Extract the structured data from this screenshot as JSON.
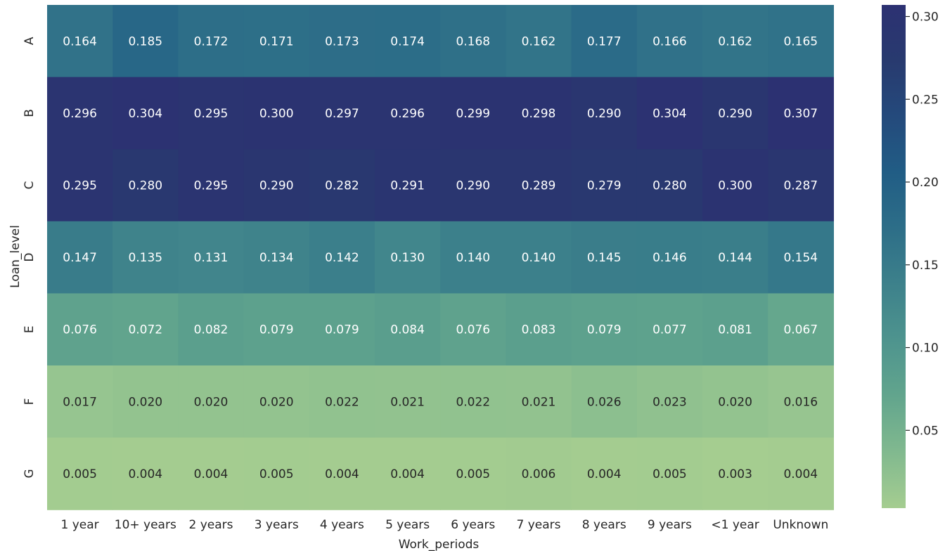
{
  "chart_data": {
    "type": "heatmap",
    "title": "",
    "xlabel": "Work_periods",
    "ylabel": "Loan_level",
    "x_categories": [
      "1 year",
      "10+ years",
      "2 years",
      "3 years",
      "4 years",
      "5 years",
      "6 years",
      "7 years",
      "8 years",
      "9 years",
      "<1 year",
      "Unknown"
    ],
    "y_categories": [
      "A",
      "B",
      "C",
      "D",
      "E",
      "F",
      "G"
    ],
    "values": [
      [
        0.164,
        0.185,
        0.172,
        0.171,
        0.173,
        0.174,
        0.168,
        0.162,
        0.177,
        0.166,
        0.162,
        0.165
      ],
      [
        0.296,
        0.304,
        0.295,
        0.3,
        0.297,
        0.296,
        0.299,
        0.298,
        0.29,
        0.304,
        0.29,
        0.307
      ],
      [
        0.295,
        0.28,
        0.295,
        0.29,
        0.282,
        0.291,
        0.29,
        0.289,
        0.279,
        0.28,
        0.3,
        0.287
      ],
      [
        0.147,
        0.135,
        0.131,
        0.134,
        0.142,
        0.13,
        0.14,
        0.14,
        0.145,
        0.146,
        0.144,
        0.154
      ],
      [
        0.076,
        0.072,
        0.082,
        0.079,
        0.079,
        0.084,
        0.076,
        0.083,
        0.079,
        0.077,
        0.081,
        0.067
      ],
      [
        0.017,
        0.02,
        0.02,
        0.02,
        0.022,
        0.021,
        0.022,
        0.021,
        0.026,
        0.023,
        0.02,
        0.016
      ],
      [
        0.005,
        0.004,
        0.004,
        0.005,
        0.004,
        0.004,
        0.005,
        0.006,
        0.004,
        0.005,
        0.003,
        0.004
      ]
    ],
    "cell_labels": [
      [
        "0.164",
        "0.185",
        "0.172",
        "0.171",
        "0.173",
        "0.174",
        "0.168",
        "0.162",
        "0.177",
        "0.166",
        "0.162",
        "0.165"
      ],
      [
        "0.296",
        "0.304",
        "0.295",
        "0.300",
        "0.297",
        "0.296",
        "0.299",
        "0.298",
        "0.290",
        "0.304",
        "0.290",
        "0.307"
      ],
      [
        "0.295",
        "0.280",
        "0.295",
        "0.290",
        "0.282",
        "0.291",
        "0.290",
        "0.289",
        "0.279",
        "0.280",
        "0.300",
        "0.287"
      ],
      [
        "0.147",
        "0.135",
        "0.131",
        "0.134",
        "0.142",
        "0.130",
        "0.140",
        "0.140",
        "0.145",
        "0.146",
        "0.144",
        "0.154"
      ],
      [
        "0.076",
        "0.072",
        "0.082",
        "0.079",
        "0.079",
        "0.084",
        "0.076",
        "0.083",
        "0.079",
        "0.077",
        "0.081",
        "0.067"
      ],
      [
        "0.017",
        "0.020",
        "0.020",
        "0.020",
        "0.022",
        "0.021",
        "0.022",
        "0.021",
        "0.026",
        "0.023",
        "0.020",
        "0.016"
      ],
      [
        "0.005",
        "0.004",
        "0.004",
        "0.005",
        "0.004",
        "0.004",
        "0.005",
        "0.006",
        "0.004",
        "0.005",
        "0.003",
        "0.004"
      ]
    ],
    "colorbar": {
      "range": [
        0.003,
        0.307
      ],
      "ticks": [
        0.05,
        0.1,
        0.15,
        0.2,
        0.25,
        0.3
      ],
      "tick_labels": [
        "0.05",
        "0.10",
        "0.15",
        "0.20",
        "0.25",
        "0.30"
      ],
      "colormap": "crest",
      "color_stops": [
        "#a5cd90",
        "#81b98f",
        "#62a58d",
        "#4e948e",
        "#3d818b",
        "#2d6e88",
        "#215d85",
        "#244a7c",
        "#283a6f",
        "#2c3172"
      ]
    },
    "grid": false,
    "text_color_light": "#ffffff",
    "text_color_dark": "#262626"
  }
}
